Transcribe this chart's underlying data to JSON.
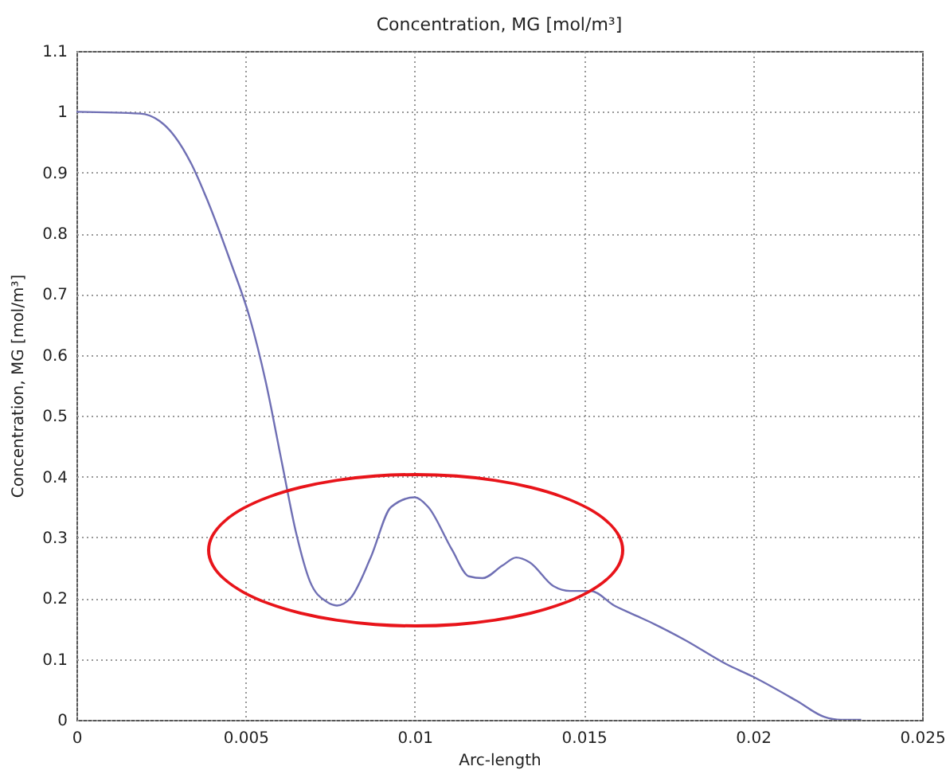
{
  "chart_data": {
    "type": "line",
    "title": "Concentration, MG [mol/m³]",
    "xlabel": "Arc-length",
    "ylabel": "Concentration, MG [mol/m³]",
    "x": [
      0,
      0.00188,
      0.00245,
      0.0029,
      0.0034,
      0.00386,
      0.00457,
      0.00513,
      0.0056,
      0.00607,
      0.0065,
      0.0069,
      0.0074,
      0.0077,
      0.0081,
      0.0087,
      0.0093,
      0.01,
      0.0104,
      0.0111,
      0.0116,
      0.012,
      0.0126,
      0.013,
      0.0134,
      0.0141,
      0.0146,
      0.0152,
      0.0159,
      0.0166,
      0.0171,
      0.018,
      0.0192,
      0.02,
      0.0213,
      0.0221,
      0.0226,
      0.0232
    ],
    "series": [
      {
        "color": "#6f6fb4",
        "values": [
          1.0,
          0.997,
          0.985,
          0.96,
          0.914,
          0.856,
          0.751,
          0.66,
          0.555,
          0.424,
          0.306,
          0.228,
          0.194,
          0.188,
          0.2,
          0.267,
          0.35,
          0.366,
          0.35,
          0.28,
          0.236,
          0.233,
          0.254,
          0.267,
          0.259,
          0.22,
          0.212,
          0.212,
          0.188,
          0.17,
          0.157,
          0.131,
          0.092,
          0.071,
          0.031,
          0.005,
          0,
          0
        ]
      }
    ],
    "xlim": [
      0,
      0.025
    ],
    "xticks": [
      0,
      0.005,
      0.01,
      0.015,
      0.02,
      0.025
    ],
    "ylim": [
      0,
      1.1
    ],
    "yticks": [
      0,
      0.1,
      0.2,
      0.3,
      0.4,
      0.5,
      0.6,
      0.7,
      0.8,
      0.9,
      1,
      1.1
    ],
    "grid": true,
    "line_style": "solid",
    "marker": "none"
  }
}
